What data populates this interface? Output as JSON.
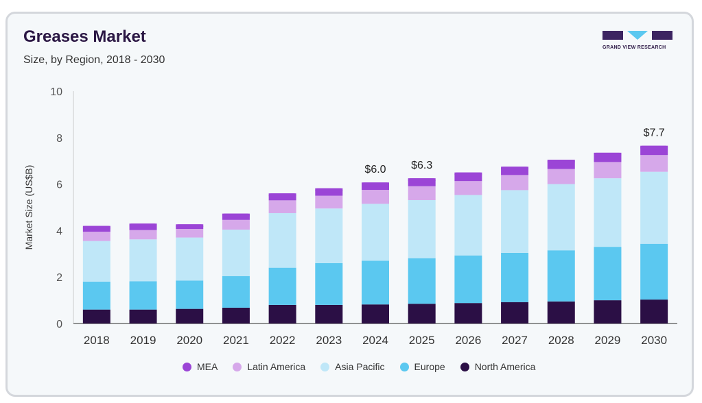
{
  "header": {
    "title": "Greases Market",
    "subtitle": "Size, by Region, 2018 - 2030"
  },
  "logo": {
    "text": "GRAND VIEW RESEARCH",
    "colors": {
      "dark": "#3c2461",
      "accent": "#5bc8f0"
    }
  },
  "chart_data": {
    "type": "bar",
    "stacked": true,
    "categories": [
      "2018",
      "2019",
      "2020",
      "2021",
      "2022",
      "2023",
      "2024",
      "2025",
      "2026",
      "2027",
      "2028",
      "2029",
      "2030"
    ],
    "ylabel": "Market Size (US$B)",
    "xlabel": "",
    "ylim": [
      0,
      10
    ],
    "yticks": [
      0,
      2,
      4,
      6,
      8,
      10
    ],
    "grid": false,
    "legend_position": "bottom",
    "series": [
      {
        "name": "North America",
        "color": "#2b0f45",
        "values": [
          0.6,
          0.6,
          0.63,
          0.68,
          0.8,
          0.8,
          0.82,
          0.85,
          0.88,
          0.92,
          0.95,
          1.0,
          1.03
        ]
      },
      {
        "name": "Europe",
        "color": "#5bc8f0",
        "values": [
          1.2,
          1.22,
          1.22,
          1.36,
          1.6,
          1.8,
          1.88,
          1.96,
          2.05,
          2.12,
          2.2,
          2.3,
          2.4
        ]
      },
      {
        "name": "Asia Pacific",
        "color": "#bfe7f8",
        "values": [
          1.75,
          1.8,
          1.85,
          2.0,
          2.35,
          2.35,
          2.45,
          2.5,
          2.6,
          2.7,
          2.85,
          2.95,
          3.1
        ]
      },
      {
        "name": "Latin America",
        "color": "#d6a8ea",
        "values": [
          0.4,
          0.4,
          0.37,
          0.42,
          0.55,
          0.55,
          0.6,
          0.6,
          0.6,
          0.65,
          0.65,
          0.7,
          0.72
        ]
      },
      {
        "name": "MEA",
        "color": "#9b45d6",
        "values": [
          0.25,
          0.28,
          0.2,
          0.27,
          0.3,
          0.32,
          0.32,
          0.34,
          0.37,
          0.36,
          0.4,
          0.4,
          0.4
        ]
      }
    ],
    "annotations": [
      {
        "category": "2024",
        "label": "$6.0"
      },
      {
        "category": "2025",
        "label": "$6.3"
      },
      {
        "category": "2030",
        "label": "$7.7"
      }
    ],
    "legend_order": [
      "MEA",
      "Latin America",
      "Asia Pacific",
      "Europe",
      "North America"
    ]
  }
}
